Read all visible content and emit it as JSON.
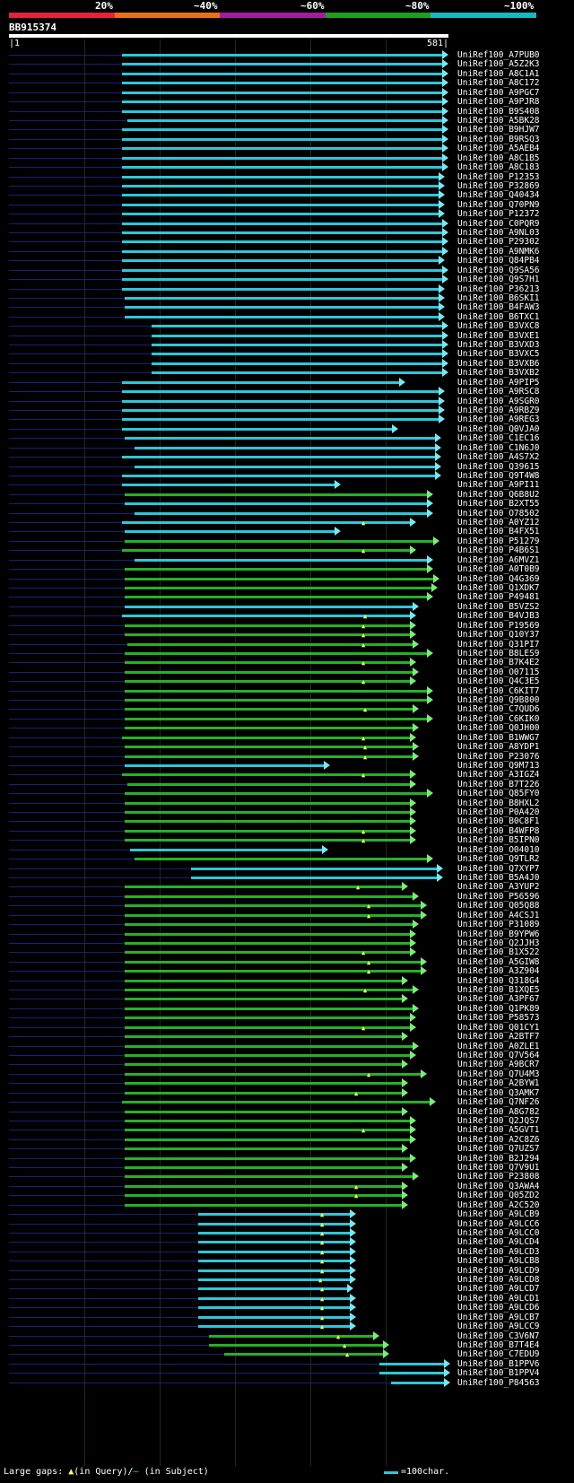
{
  "header": {
    "pct_labels": [
      "20%",
      "~40%",
      "~60%",
      "~80%",
      "~100%"
    ],
    "color_bands": [
      "#e8223a",
      "#e8701a",
      "#a21e9e",
      "#1ea01e",
      "#18b8c0"
    ],
    "query_name": "BB915374",
    "query_start": "|1",
    "query_end": "581|"
  },
  "colors": {
    "cyan": "#2fc6d8",
    "green": "#27b027",
    "cyan_head": "#7be6ee",
    "green_head": "#7fe87f",
    "gap_mark": "#ffff60"
  },
  "hits": [
    {
      "name": "UniRef100_A7PUB0",
      "s": 136,
      "e": 500,
      "c": "cyan"
    },
    {
      "name": "UniRef100_A5Z2K3",
      "s": 136,
      "e": 500,
      "c": "cyan"
    },
    {
      "name": "UniRef100_A8C1A1",
      "s": 136,
      "e": 500,
      "c": "cyan"
    },
    {
      "name": "UniRef100_A8C172",
      "s": 136,
      "e": 500,
      "c": "cyan"
    },
    {
      "name": "UniRef100_A9PGC7",
      "s": 136,
      "e": 500,
      "c": "cyan"
    },
    {
      "name": "UniRef100_A9PJR8",
      "s": 136,
      "e": 500,
      "c": "cyan"
    },
    {
      "name": "UniRef100_B9S408",
      "s": 136,
      "e": 500,
      "c": "cyan"
    },
    {
      "name": "UniRef100_A5BK28",
      "s": 142,
      "e": 500,
      "c": "cyan"
    },
    {
      "name": "UniRef100_B9HJW7",
      "s": 136,
      "e": 500,
      "c": "cyan"
    },
    {
      "name": "UniRef100_B9RSQ3",
      "s": 136,
      "e": 500,
      "c": "cyan"
    },
    {
      "name": "UniRef100_A5AEB4",
      "s": 136,
      "e": 500,
      "c": "cyan"
    },
    {
      "name": "UniRef100_A8C1B5",
      "s": 136,
      "e": 500,
      "c": "cyan"
    },
    {
      "name": "UniRef100_A8C183",
      "s": 136,
      "e": 500,
      "c": "cyan"
    },
    {
      "name": "UniRef100_P12353",
      "s": 136,
      "e": 496,
      "c": "cyan"
    },
    {
      "name": "UniRef100_P32869",
      "s": 136,
      "e": 496,
      "c": "cyan"
    },
    {
      "name": "UniRef100_Q40434",
      "s": 136,
      "e": 496,
      "c": "cyan"
    },
    {
      "name": "UniRef100_Q70PN9",
      "s": 136,
      "e": 496,
      "c": "cyan"
    },
    {
      "name": "UniRef100_P12372",
      "s": 136,
      "e": 496,
      "c": "cyan"
    },
    {
      "name": "UniRef100_C0PQR9",
      "s": 136,
      "e": 500,
      "c": "cyan"
    },
    {
      "name": "UniRef100_A9NL03",
      "s": 136,
      "e": 500,
      "c": "cyan"
    },
    {
      "name": "UniRef100_P29302",
      "s": 136,
      "e": 500,
      "c": "cyan"
    },
    {
      "name": "UniRef100_A9NMK6",
      "s": 136,
      "e": 500,
      "c": "cyan"
    },
    {
      "name": "UniRef100_Q84PB4",
      "s": 136,
      "e": 496,
      "c": "cyan"
    },
    {
      "name": "UniRef100_Q9SA56",
      "s": 136,
      "e": 500,
      "c": "cyan"
    },
    {
      "name": "UniRef100_Q9S7H1",
      "s": 136,
      "e": 500,
      "c": "cyan"
    },
    {
      "name": "UniRef100_P36213",
      "s": 136,
      "e": 496,
      "c": "cyan"
    },
    {
      "name": "UniRef100_B6SKI1",
      "s": 139,
      "e": 496,
      "c": "cyan"
    },
    {
      "name": "UniRef100_B4FAW3",
      "s": 139,
      "e": 496,
      "c": "cyan"
    },
    {
      "name": "UniRef100_B6TXC1",
      "s": 139,
      "e": 496,
      "c": "cyan"
    },
    {
      "name": "UniRef100_B3VXC8",
      "s": 169,
      "e": 500,
      "c": "cyan"
    },
    {
      "name": "UniRef100_B3VXE1",
      "s": 169,
      "e": 500,
      "c": "cyan"
    },
    {
      "name": "UniRef100_B3VXD3",
      "s": 169,
      "e": 500,
      "c": "cyan"
    },
    {
      "name": "UniRef100_B3VXC5",
      "s": 169,
      "e": 500,
      "c": "cyan"
    },
    {
      "name": "UniRef100_B3VXB6",
      "s": 169,
      "e": 500,
      "c": "cyan"
    },
    {
      "name": "UniRef100_B3VXB2",
      "s": 169,
      "e": 500,
      "c": "cyan"
    },
    {
      "name": "UniRef100_A9PIP5",
      "s": 136,
      "e": 452,
      "c": "cyan"
    },
    {
      "name": "UniRef100_A9RSC8",
      "s": 136,
      "e": 496,
      "c": "cyan"
    },
    {
      "name": "UniRef100_A9SGR0",
      "s": 136,
      "e": 496,
      "c": "cyan"
    },
    {
      "name": "UniRef100_A9RBZ9",
      "s": 136,
      "e": 496,
      "c": "cyan"
    },
    {
      "name": "UniRef100_A9REG3",
      "s": 136,
      "e": 496,
      "c": "cyan"
    },
    {
      "name": "UniRef100_Q0VJA0",
      "s": 136,
      "e": 444,
      "c": "cyan"
    },
    {
      "name": "UniRef100_C1EC16",
      "s": 139,
      "e": 492,
      "c": "cyan"
    },
    {
      "name": "UniRef100_C1N6J0",
      "s": 150,
      "e": 492,
      "c": "cyan"
    },
    {
      "name": "UniRef100_A4S7X2",
      "s": 136,
      "e": 492,
      "c": "cyan"
    },
    {
      "name": "UniRef100_Q39615",
      "s": 150,
      "e": 492,
      "c": "cyan"
    },
    {
      "name": "UniRef100_Q9T4W8",
      "s": 136,
      "e": 492,
      "c": "cyan"
    },
    {
      "name": "UniRef100_A9PI11",
      "s": 136,
      "e": 380,
      "c": "cyan"
    },
    {
      "name": "UniRef100_Q6B8U2",
      "s": 139,
      "e": 483,
      "c": "green"
    },
    {
      "name": "UniRef100_B2XT55",
      "s": 139,
      "e": 483,
      "c": "cyan"
    },
    {
      "name": "UniRef100_O78502",
      "s": 150,
      "e": 483,
      "c": "cyan"
    },
    {
      "name": "UniRef100_A0YZ12",
      "s": 136,
      "e": 464,
      "c": "cyan",
      "g": 406
    },
    {
      "name": "UniRef100_B4FX51",
      "s": 139,
      "e": 380,
      "c": "cyan"
    },
    {
      "name": "UniRef100_P51279",
      "s": 139,
      "e": 490,
      "c": "green"
    },
    {
      "name": "UniRef100_P4B6S1",
      "s": 136,
      "e": 464,
      "c": "green",
      "g": 406
    },
    {
      "name": "UniRef100_A6MVZ1",
      "s": 150,
      "e": 483,
      "c": "cyan"
    },
    {
      "name": "UniRef100_A0T0B9",
      "s": 139,
      "e": 483,
      "c": "green"
    },
    {
      "name": "UniRef100_Q4G369",
      "s": 139,
      "e": 490,
      "c": "green"
    },
    {
      "name": "UniRef100_Q1XDK7",
      "s": 139,
      "e": 488,
      "c": "green"
    },
    {
      "name": "UniRef100_P49481",
      "s": 139,
      "e": 483,
      "c": "green"
    },
    {
      "name": "UniRef100_B5VZS2",
      "s": 139,
      "e": 467,
      "c": "cyan"
    },
    {
      "name": "UniRef100_B4VJB3",
      "s": 136,
      "e": 464,
      "c": "cyan",
      "g": 408
    },
    {
      "name": "UniRef100_P19569",
      "s": 139,
      "e": 464,
      "c": "green",
      "g": 406
    },
    {
      "name": "UniRef100_Q10Y37",
      "s": 139,
      "e": 464,
      "c": "green",
      "g": 406
    },
    {
      "name": "UniRef100_Q31PI7",
      "s": 142,
      "e": 467,
      "c": "green",
      "g": 406
    },
    {
      "name": "UniRef100_B8LES9",
      "s": 139,
      "e": 483,
      "c": "green"
    },
    {
      "name": "UniRef100_B7K4E2",
      "s": 139,
      "e": 464,
      "c": "green",
      "g": 406
    },
    {
      "name": "UniRef100_O07115",
      "s": 139,
      "e": 467,
      "c": "green"
    },
    {
      "name": "UniRef100_Q4C3E5",
      "s": 139,
      "e": 464,
      "c": "green",
      "g": 406
    },
    {
      "name": "UniRef100_C6KIT7",
      "s": 139,
      "e": 483,
      "c": "green"
    },
    {
      "name": "UniRef100_Q9B800",
      "s": 139,
      "e": 483,
      "c": "green"
    },
    {
      "name": "UniRef100_C7QUD6",
      "s": 139,
      "e": 467,
      "c": "green",
      "g": 408
    },
    {
      "name": "UniRef100_C6KIK0",
      "s": 139,
      "e": 483,
      "c": "green"
    },
    {
      "name": "UniRef100_Q0JH00",
      "s": 139,
      "e": 467,
      "c": "green"
    },
    {
      "name": "UniRef100_B1WWG7",
      "s": 136,
      "e": 464,
      "c": "green",
      "g": 406
    },
    {
      "name": "UniRef100_A8YDP1",
      "s": 139,
      "e": 467,
      "c": "green",
      "g": 408
    },
    {
      "name": "UniRef100_P23076",
      "s": 139,
      "e": 467,
      "c": "green",
      "g": 408
    },
    {
      "name": "UniRef100_Q9M713",
      "s": 139,
      "e": 368,
      "c": "cyan"
    },
    {
      "name": "UniRef100_A3IGZ4",
      "s": 136,
      "e": 464,
      "c": "green",
      "g": 406
    },
    {
      "name": "UniRef100_B7T226",
      "s": 142,
      "e": 464,
      "c": "green"
    },
    {
      "name": "UniRef100_Q85FY0",
      "s": 139,
      "e": 483,
      "c": "green"
    },
    {
      "name": "UniRef100_B8HXL2",
      "s": 139,
      "e": 464,
      "c": "green"
    },
    {
      "name": "UniRef100_P0A420",
      "s": 139,
      "e": 464,
      "c": "green"
    },
    {
      "name": "UniRef100_B0C8F1",
      "s": 139,
      "e": 464,
      "c": "green"
    },
    {
      "name": "UniRef100_B4WFP8",
      "s": 139,
      "e": 464,
      "c": "green",
      "g": 406
    },
    {
      "name": "UniRef100_B5IPN0",
      "s": 139,
      "e": 464,
      "c": "green",
      "g": 406
    },
    {
      "name": "UniRef100_O04010",
      "s": 145,
      "e": 366,
      "c": "cyan"
    },
    {
      "name": "UniRef100_Q9TLR2",
      "s": 150,
      "e": 483,
      "c": "green"
    },
    {
      "name": "UniRef100_Q7XYP7",
      "s": 213,
      "e": 494,
      "c": "cyan"
    },
    {
      "name": "UniRef100_B5A4J0",
      "s": 213,
      "e": 494,
      "c": "cyan"
    },
    {
      "name": "UniRef100_A3YUP2",
      "s": 139,
      "e": 455,
      "c": "green",
      "g": 400
    },
    {
      "name": "UniRef100_P56596",
      "s": 139,
      "e": 467,
      "c": "green"
    },
    {
      "name": "UniRef100_Q05Q88",
      "s": 139,
      "e": 476,
      "c": "green",
      "g": 412
    },
    {
      "name": "UniRef100_A4CSJ1",
      "s": 139,
      "e": 476,
      "c": "green",
      "g": 412
    },
    {
      "name": "UniRef100_P31089",
      "s": 139,
      "e": 467,
      "c": "green"
    },
    {
      "name": "UniRef100_B9YPW6",
      "s": 139,
      "e": 464,
      "c": "green"
    },
    {
      "name": "UniRef100_Q2JJH3",
      "s": 139,
      "e": 464,
      "c": "green"
    },
    {
      "name": "UniRef100_B1X522",
      "s": 139,
      "e": 464,
      "c": "green",
      "g": 406
    },
    {
      "name": "UniRef100_A5GIW8",
      "s": 139,
      "e": 476,
      "c": "green",
      "g": 412
    },
    {
      "name": "UniRef100_A3Z904",
      "s": 139,
      "e": 476,
      "c": "green",
      "g": 412
    },
    {
      "name": "UniRef100_Q318G4",
      "s": 139,
      "e": 455,
      "c": "green"
    },
    {
      "name": "UniRef100_B1XQE5",
      "s": 139,
      "e": 467,
      "c": "green",
      "g": 408
    },
    {
      "name": "UniRef100_A3PF67",
      "s": 139,
      "e": 455,
      "c": "green"
    },
    {
      "name": "UniRef100_Q1PK89",
      "s": 139,
      "e": 467,
      "c": "green"
    },
    {
      "name": "UniRef100_P58573",
      "s": 139,
      "e": 464,
      "c": "green"
    },
    {
      "name": "UniRef100_Q01CY1",
      "s": 139,
      "e": 464,
      "c": "green",
      "g": 406
    },
    {
      "name": "UniRef100_A2BTF7",
      "s": 139,
      "e": 455,
      "c": "green"
    },
    {
      "name": "UniRef100_A0ZLE1",
      "s": 139,
      "e": 467,
      "c": "green"
    },
    {
      "name": "UniRef100_Q7V564",
      "s": 139,
      "e": 464,
      "c": "green"
    },
    {
      "name": "UniRef100_A9BCR7",
      "s": 139,
      "e": 455,
      "c": "green"
    },
    {
      "name": "UniRef100_Q7U4M3",
      "s": 139,
      "e": 476,
      "c": "green",
      "g": 412
    },
    {
      "name": "UniRef100_A2BYW1",
      "s": 139,
      "e": 455,
      "c": "green"
    },
    {
      "name": "UniRef100_Q3AMK7",
      "s": 139,
      "e": 455,
      "c": "green",
      "g": 398
    },
    {
      "name": "UniRef100_Q7NF26",
      "s": 136,
      "e": 486,
      "c": "green"
    },
    {
      "name": "UniRef100_A8G782",
      "s": 139,
      "e": 455,
      "c": "green"
    },
    {
      "name": "UniRef100_Q2JQS7",
      "s": 139,
      "e": 464,
      "c": "green"
    },
    {
      "name": "UniRef100_A5GVT1",
      "s": 139,
      "e": 464,
      "c": "green",
      "g": 406
    },
    {
      "name": "UniRef100_A2C8Z6",
      "s": 139,
      "e": 464,
      "c": "green"
    },
    {
      "name": "UniRef100_Q7UZS7",
      "s": 139,
      "e": 455,
      "c": "green"
    },
    {
      "name": "UniRef100_B2J294",
      "s": 139,
      "e": 464,
      "c": "green"
    },
    {
      "name": "UniRef100_Q7V9U1",
      "s": 139,
      "e": 455,
      "c": "green"
    },
    {
      "name": "UniRef100_P23808",
      "s": 139,
      "e": 467,
      "c": "green"
    },
    {
      "name": "UniRef100_Q3AWA4",
      "s": 139,
      "e": 455,
      "c": "green",
      "g": 398
    },
    {
      "name": "UniRef100_Q05ZD2",
      "s": 139,
      "e": 455,
      "c": "green",
      "g": 398
    },
    {
      "name": "UniRef100_A2C520",
      "s": 139,
      "e": 455,
      "c": "green"
    },
    {
      "name": "UniRef100_A9LCB9",
      "s": 221,
      "e": 397,
      "c": "cyan",
      "g": 360
    },
    {
      "name": "UniRef100_A9LCC6",
      "s": 221,
      "e": 397,
      "c": "cyan",
      "g": 360
    },
    {
      "name": "UniRef100_A9LCC0",
      "s": 221,
      "e": 397,
      "c": "cyan",
      "g": 360
    },
    {
      "name": "UniRef100_A9LCD4",
      "s": 221,
      "e": 397,
      "c": "cyan",
      "g": 360
    },
    {
      "name": "UniRef100_A9LCD3",
      "s": 221,
      "e": 397,
      "c": "cyan",
      "g": 360
    },
    {
      "name": "UniRef100_A9LCB8",
      "s": 221,
      "e": 397,
      "c": "cyan",
      "g": 360
    },
    {
      "name": "UniRef100_A9LCD9",
      "s": 221,
      "e": 397,
      "c": "cyan",
      "g": 360
    },
    {
      "name": "UniRef100_A9LCD8",
      "s": 221,
      "e": 397,
      "c": "cyan",
      "g": 358
    },
    {
      "name": "UniRef100_A9LCD7",
      "s": 221,
      "e": 394,
      "c": "cyan",
      "g": 360
    },
    {
      "name": "UniRef100_A9LCD1",
      "s": 221,
      "e": 397,
      "c": "cyan",
      "g": 360
    },
    {
      "name": "UniRef100_A9LCD6",
      "s": 221,
      "e": 397,
      "c": "cyan",
      "g": 360
    },
    {
      "name": "UniRef100_A9LCB7",
      "s": 221,
      "e": 397,
      "c": "cyan",
      "g": 360
    },
    {
      "name": "UniRef100_A9LCC9",
      "s": 221,
      "e": 397,
      "c": "cyan",
      "g": 360
    },
    {
      "name": "UniRef100_C3V6N7",
      "s": 233,
      "e": 423,
      "c": "green",
      "g": 378
    },
    {
      "name": "UniRef100_B7T4E4",
      "s": 233,
      "e": 434,
      "c": "green",
      "g": 385
    },
    {
      "name": "UniRef100_C7EDU9",
      "s": 250,
      "e": 434,
      "c": "green",
      "g": 388
    },
    {
      "name": "UniRef100_B1PPV6",
      "s": 423,
      "e": 502,
      "c": "cyan"
    },
    {
      "name": "UniRef100_B1PPV4",
      "s": 423,
      "e": 502,
      "c": "cyan"
    },
    {
      "name": "UniRef100_P84563",
      "s": 436,
      "e": 502,
      "c": "cyan"
    }
  ],
  "legend": {
    "text1": "Large gaps: ",
    "tri": "▲",
    "text2": "(in Query)/",
    "dash": "–",
    "text3": " (in Subject)",
    "scale_label": "=100char."
  }
}
